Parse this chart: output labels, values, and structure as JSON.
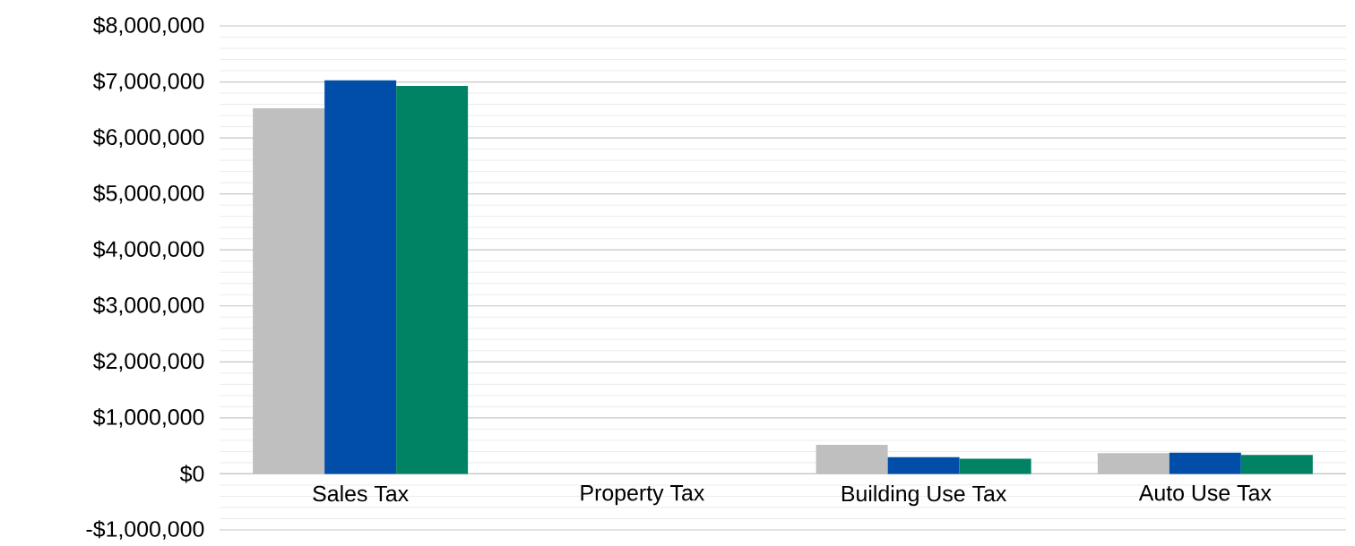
{
  "chart_data": {
    "type": "bar",
    "categories": [
      "Sales Tax",
      "Property Tax",
      "Building Use Tax",
      "Auto Use Tax"
    ],
    "series": [
      {
        "color": "#bfbfbf",
        "values": [
          6530000,
          0,
          520000,
          370000
        ]
      },
      {
        "color": "#004ea8",
        "values": [
          7030000,
          null,
          300000,
          380000
        ]
      },
      {
        "color": "#008264",
        "values": [
          6930000,
          0,
          270000,
          340000
        ]
      }
    ],
    "ylim": [
      -1000000,
      8000000
    ],
    "yticks": [
      {
        "value": -1000000,
        "label": "-$1,000,000"
      },
      {
        "value": 0,
        "label": "$0"
      },
      {
        "value": 1000000,
        "label": "$1,000,000"
      },
      {
        "value": 2000000,
        "label": "$2,000,000"
      },
      {
        "value": 3000000,
        "label": "$3,000,000"
      },
      {
        "value": 4000000,
        "label": "$4,000,000"
      },
      {
        "value": 5000000,
        "label": "$5,000,000"
      },
      {
        "value": 6000000,
        "label": "$6,000,000"
      },
      {
        "value": 7000000,
        "label": "$7,000,000"
      },
      {
        "value": 8000000,
        "label": "$8,000,000"
      }
    ],
    "grid": "y",
    "legend": false
  }
}
